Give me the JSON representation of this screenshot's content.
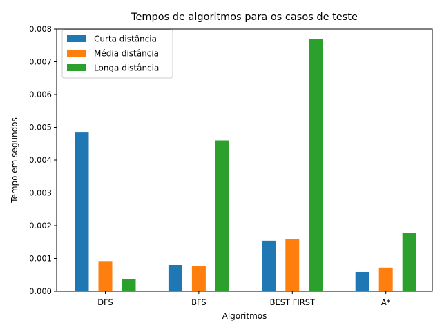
{
  "chart_data": {
    "type": "bar",
    "title": "Tempos de algoritmos para os casos de teste",
    "xlabel": "Algoritmos",
    "ylabel": "Tempo em segundos",
    "categories": [
      "DFS",
      "BFS",
      "BEST FIRST",
      "A*"
    ],
    "series": [
      {
        "name": "Curta distância",
        "color": "#1f77b4",
        "values": [
          0.00484,
          0.0008,
          0.00154,
          0.00059
        ]
      },
      {
        "name": "Média distância",
        "color": "#ff7f0e",
        "values": [
          0.00092,
          0.00076,
          0.0016,
          0.00072
        ]
      },
      {
        "name": "Longa distância",
        "color": "#2ca02c",
        "values": [
          0.00037,
          0.0046,
          0.0077,
          0.00178
        ]
      }
    ],
    "ylim": [
      0,
      0.008
    ],
    "yticks": [
      "0.000",
      "0.001",
      "0.002",
      "0.003",
      "0.004",
      "0.005",
      "0.006",
      "0.007",
      "0.008"
    ],
    "grid": false,
    "legend_position": "top-left"
  }
}
